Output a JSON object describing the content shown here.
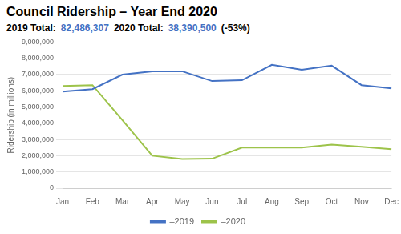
{
  "chart_data": {
    "type": "line",
    "title": "Council Ridership – Year End 2020",
    "annotations": [
      {
        "text": "2019 Total:",
        "color": "#000000"
      },
      {
        "text": "82,486,307",
        "color": "#4472C4"
      },
      {
        "text": "2020 Total:",
        "color": "#000000"
      },
      {
        "text": "38,390,500",
        "color": "#4472C4"
      },
      {
        "text": "(-53%)",
        "color": "#000000"
      }
    ],
    "y_label": "Ridership (in millions)",
    "categories": [
      "Jan",
      "Feb",
      "Mar",
      "Apr",
      "May",
      "Jun",
      "Jul",
      "Aug",
      "Sep",
      "Oct",
      "Nov",
      "Dec"
    ],
    "series": [
      {
        "name": "–2019",
        "color": "#4472C4",
        "values": [
          5950000,
          6100000,
          7000000,
          7200000,
          7200000,
          6600000,
          6650000,
          7600000,
          7300000,
          7550000,
          6350000,
          6150000
        ]
      },
      {
        "name": "–2020",
        "color": "#9DC34A",
        "values": [
          6300000,
          6350000,
          4200000,
          2000000,
          1800000,
          1820000,
          2500000,
          2500000,
          2500000,
          2680000,
          2550000,
          2400000
        ]
      }
    ],
    "ylim": [
      0,
      9000000
    ],
    "yticks": [
      0,
      {
        "value": 1000000,
        "label": "1,000,000"
      },
      {
        "value": 2000000,
        "label": "2,000,000"
      },
      {
        "value": 3000000,
        "label": "3,000,000"
      },
      {
        "value": 4000000,
        "label": "4,000,000"
      },
      {
        "value": 5000000,
        "label": "5,000,000"
      },
      {
        "value": 6000000,
        "label": "6,000,000"
      },
      {
        "value": 7000000,
        "label": "7,000,000"
      },
      {
        "value": 8000000,
        "label": "8,000,000"
      },
      {
        "value": 9000000,
        "label": "9,000,000"
      }
    ],
    "grid": true,
    "legend": "bottom"
  }
}
